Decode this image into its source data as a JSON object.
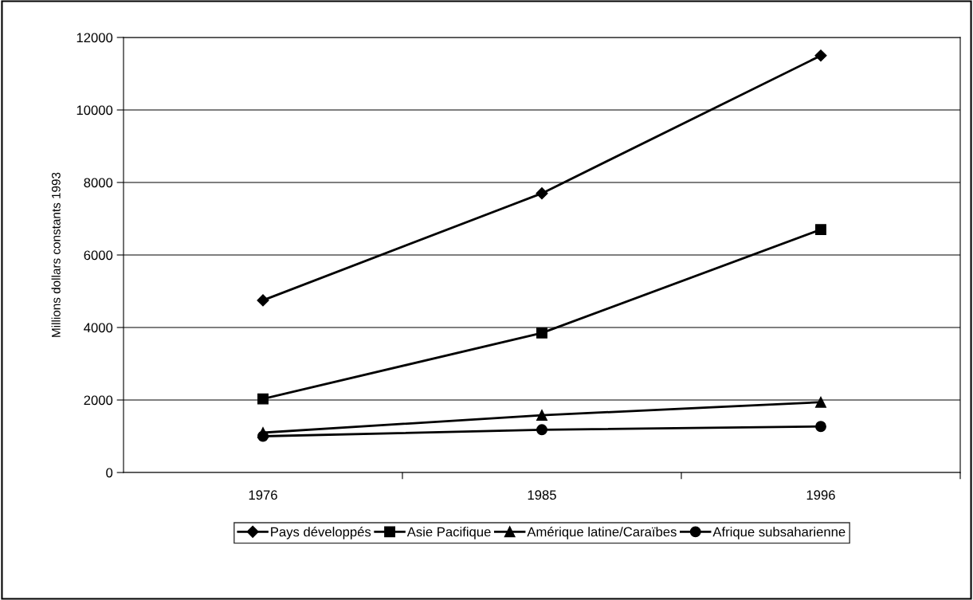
{
  "chart_data": {
    "type": "line",
    "ylabel": "Millions dollars constants 1993",
    "categories": [
      "1976",
      "1985",
      "1996"
    ],
    "series": [
      {
        "name": "Pays développés",
        "color": "#000000",
        "marker": "diamond",
        "values": [
          4750,
          7700,
          11500
        ]
      },
      {
        "name": "Asie Pacifique",
        "color": "#000000",
        "marker": "square",
        "values": [
          2030,
          3850,
          6700
        ]
      },
      {
        "name": "Amérique latine/Caraïbes",
        "color": "#000000",
        "marker": "triangle",
        "values": [
          1100,
          1580,
          1940
        ]
      },
      {
        "name": "Afrique subsaharienne",
        "color": "#000000",
        "marker": "circle",
        "values": [
          1000,
          1180,
          1270
        ]
      }
    ],
    "ylim": [
      0,
      12000
    ],
    "yticks": [
      0,
      2000,
      4000,
      6000,
      8000,
      10000,
      12000
    ],
    "grid": "y",
    "legend": "bottom",
    "line_style": "solid"
  }
}
